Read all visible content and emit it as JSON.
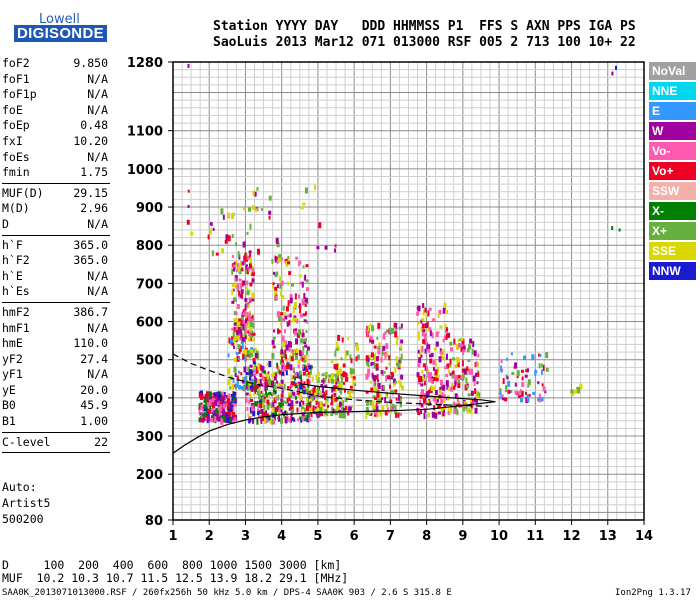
{
  "logo": {
    "top": "Lowell",
    "bottom": "DIGISONDE"
  },
  "header": {
    "line1": "Station YYYY DAY   DDD HHMMSS P1  FFS S AXN PPS IGA PS",
    "line2": "SaoLuis 2013 Mar12 071 013000 RSF 005 2 713 100 10+ 22"
  },
  "params": {
    "groups": [
      [
        [
          "foF2",
          "9.850"
        ],
        [
          "foF1",
          "N/A"
        ],
        [
          "foF1p",
          "N/A"
        ],
        [
          "foE",
          "N/A"
        ],
        [
          "foEp",
          "0.48"
        ],
        [
          "fxI",
          "10.20"
        ],
        [
          "foEs",
          "N/A"
        ],
        [
          "fmin",
          "1.75"
        ]
      ],
      [
        [
          "MUF(D)",
          "29.15"
        ],
        [
          "M(D)",
          "2.96"
        ],
        [
          "D",
          "N/A"
        ]
      ],
      [
        [
          "h`F",
          "365.0"
        ],
        [
          "h`F2",
          "365.0"
        ],
        [
          "h`E",
          "N/A"
        ],
        [
          "h`Es",
          "N/A"
        ]
      ],
      [
        [
          "hmF2",
          "386.7"
        ],
        [
          "hmF1",
          "N/A"
        ],
        [
          "hmE",
          "110.0"
        ],
        [
          "yF2",
          "27.4"
        ],
        [
          "yF1",
          "N/A"
        ],
        [
          "yE",
          "20.0"
        ],
        [
          "B0",
          "45.9"
        ],
        [
          "B1",
          "1.00"
        ]
      ],
      [
        [
          "C-level",
          "22"
        ]
      ]
    ],
    "auto_lines": [
      "Auto:",
      "Artist5",
      "500200"
    ]
  },
  "legend": [
    {
      "label": "NoVal",
      "color": "#a0a0a0"
    },
    {
      "label": "NNE",
      "color": "#00d8f0"
    },
    {
      "label": "E",
      "color": "#3399ff"
    },
    {
      "label": "W",
      "color": "#a000a0"
    },
    {
      "label": "Vo-",
      "color": "#ff5ab0"
    },
    {
      "label": "Vo+",
      "color": "#ee0022"
    },
    {
      "label": "SSW",
      "color": "#f4b0a8"
    },
    {
      "label": "X-",
      "color": "#008000"
    },
    {
      "label": "X+",
      "color": "#66b040"
    },
    {
      "label": "SSE",
      "color": "#d8d800"
    },
    {
      "label": "NNW",
      "color": "#1a1ad0"
    }
  ],
  "footer": {
    "d_line": "D     100  200  400  600  800 1000 1500 3000 [km]",
    "muf_line": "MUF  10.2 10.3 10.7 11.5 12.5 13.9 18.2 29.1 [MHz]",
    "file_line": "SAA0K_2013071013000.RSF / 260fx256h 50 kHz 5.0 km / DPS-4 SAA0K 903 / 2.6 S 315.8 E",
    "version": "Ion2Png 1.3.17"
  },
  "chart_data": {
    "type": "scatter",
    "title": "",
    "xlabel": "",
    "ylabel": "",
    "xlim": [
      1,
      14
    ],
    "ylim": [
      80,
      1280
    ],
    "x_ticks": [
      1,
      2,
      3,
      4,
      5,
      6,
      7,
      8,
      9,
      10,
      11,
      12,
      13,
      14
    ],
    "y_ticks": [
      80,
      200,
      300,
      400,
      500,
      600,
      700,
      800,
      900,
      1000,
      1100,
      1280
    ],
    "grid": true,
    "clusters": [
      {
        "x": [
          1.7,
          2.7
        ],
        "y": [
          345,
          420
        ],
        "n": 240,
        "colors": [
          "#ee0022",
          "#a000a0",
          "#ff5ab0",
          "#1a1ad0",
          "#008000"
        ]
      },
      {
        "x": [
          2.6,
          3.2
        ],
        "y": [
          560,
          790
        ],
        "n": 170,
        "colors": [
          "#ee0022",
          "#a000a0",
          "#ff5ab0",
          "#d8d800",
          "#66b040"
        ]
      },
      {
        "x": [
          2.5,
          3.3
        ],
        "y": [
          430,
          560
        ],
        "n": 90,
        "colors": [
          "#ee0022",
          "#a000a0",
          "#d8d800",
          "#66b040",
          "#3399ff"
        ]
      },
      {
        "x": [
          3.7,
          4.7
        ],
        "y": [
          500,
          780
        ],
        "n": 150,
        "colors": [
          "#ee0022",
          "#a000a0",
          "#ff5ab0",
          "#d8d800",
          "#66b040"
        ]
      },
      {
        "x": [
          3.0,
          4.8
        ],
        "y": [
          345,
          500
        ],
        "n": 340,
        "colors": [
          "#ee0022",
          "#a000a0",
          "#ff5ab0",
          "#1a1ad0",
          "#d8d800",
          "#008000",
          "#66b040"
        ]
      },
      {
        "x": [
          4.8,
          5.9
        ],
        "y": [
          360,
          470
        ],
        "n": 140,
        "colors": [
          "#d8d800",
          "#66b040",
          "#ee0022",
          "#a000a0"
        ]
      },
      {
        "x": [
          5.3,
          6.1
        ],
        "y": [
          420,
          570
        ],
        "n": 40,
        "colors": [
          "#d8d800",
          "#66b040",
          "#ee0022"
        ]
      },
      {
        "x": [
          6.3,
          7.3
        ],
        "y": [
          360,
          600
        ],
        "n": 180,
        "colors": [
          "#ee0022",
          "#ff5ab0",
          "#d8d800",
          "#a000a0",
          "#66b040"
        ]
      },
      {
        "x": [
          7.7,
          8.6
        ],
        "y": [
          360,
          650
        ],
        "n": 180,
        "colors": [
          "#ee0022",
          "#a000a0",
          "#ff5ab0",
          "#d8d800"
        ]
      },
      {
        "x": [
          8.6,
          9.4
        ],
        "y": [
          370,
          560
        ],
        "n": 110,
        "colors": [
          "#ee0022",
          "#a000a0",
          "#d8d800",
          "#66b040",
          "#ff5ab0"
        ]
      },
      {
        "x": [
          10.0,
          11.3
        ],
        "y": [
          400,
          520
        ],
        "n": 70,
        "colors": [
          "#ee0022",
          "#a000a0",
          "#66b040",
          "#3399ff",
          "#ff5ab0"
        ]
      },
      {
        "x": [
          11.9,
          12.4
        ],
        "y": [
          420,
          450
        ],
        "n": 6,
        "colors": [
          "#d8d800",
          "#66b040"
        ]
      },
      {
        "x": [
          1.3,
          5.5
        ],
        "y": [
          780,
          960
        ],
        "n": 50,
        "colors": [
          "#d8d800",
          "#66b040",
          "#ee0022",
          "#a000a0"
        ]
      },
      {
        "x": [
          12.8,
          13.3
        ],
        "y": [
          840,
          860
        ],
        "n": 2,
        "colors": [
          "#1a1ad0",
          "#008000"
        ]
      }
    ],
    "special_points": [
      {
        "x": 13.2,
        "y": 1270,
        "color": "#1a1ad0"
      },
      {
        "x": 13.1,
        "y": 1255,
        "color": "#a000a0"
      },
      {
        "x": 1.4,
        "y": 1275,
        "color": "#a000a0"
      }
    ],
    "profile_solid": [
      [
        1,
        255
      ],
      [
        1.3,
        275
      ],
      [
        1.7,
        298
      ],
      [
        2,
        313
      ],
      [
        2.5,
        330
      ],
      [
        3,
        342
      ],
      [
        3.5,
        350
      ],
      [
        4,
        356
      ],
      [
        5,
        362
      ],
      [
        6,
        364
      ],
      [
        7,
        366
      ],
      [
        8,
        370
      ],
      [
        9,
        380
      ],
      [
        9.9,
        390
      ],
      [
        9.5,
        395
      ],
      [
        9,
        398
      ],
      [
        8,
        405
      ],
      [
        7,
        412
      ],
      [
        6,
        420
      ],
      [
        5,
        430
      ],
      [
        4.5,
        437
      ]
    ],
    "profile_dashed": [
      [
        1,
        515
      ],
      [
        1.5,
        490
      ],
      [
        2,
        472
      ],
      [
        2.5,
        455
      ],
      [
        3,
        442
      ],
      [
        3.5,
        432
      ],
      [
        4,
        425
      ],
      [
        4.5,
        415
      ],
      [
        5,
        405
      ],
      [
        6,
        395
      ],
      [
        7,
        388
      ],
      [
        8,
        384
      ],
      [
        9,
        380
      ],
      [
        9.7,
        378
      ]
    ]
  }
}
